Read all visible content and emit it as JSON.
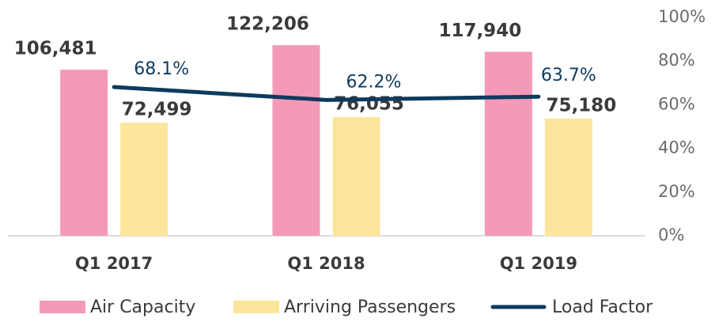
{
  "chart_data": {
    "type": "bar-line",
    "categories": [
      "Q1 2017",
      "Q1 2018",
      "Q1 2019"
    ],
    "series": [
      {
        "name": "Air Capacity",
        "color": "#f49ab9",
        "values": [
          106481,
          122206,
          117940
        ],
        "value_labels": [
          "106,481",
          "122,206",
          "117,940"
        ]
      },
      {
        "name": "Arriving Passengers",
        "color": "#fde69b",
        "values": [
          72499,
          76055,
          75180
        ],
        "value_labels": [
          "72,499",
          "76,055",
          "75,180"
        ]
      },
      {
        "name": "Load Factor",
        "color": "#0d3b5e",
        "type": "line",
        "axis": "y2",
        "values": [
          68.1,
          62.2,
          63.7
        ],
        "value_labels": [
          "68.1%",
          "62.2%",
          "63.7%"
        ]
      }
    ],
    "ylim": [
      0,
      140000
    ],
    "y2lim": [
      0,
      100
    ],
    "y2ticks": [
      {
        "value": 0,
        "label": "0%"
      },
      {
        "value": 20,
        "label": "20%"
      },
      {
        "value": 40,
        "label": "40%"
      },
      {
        "value": 60,
        "label": "60%"
      },
      {
        "value": 80,
        "label": "80%"
      },
      {
        "value": 100,
        "label": "100%"
      }
    ],
    "legend": "bottom"
  }
}
